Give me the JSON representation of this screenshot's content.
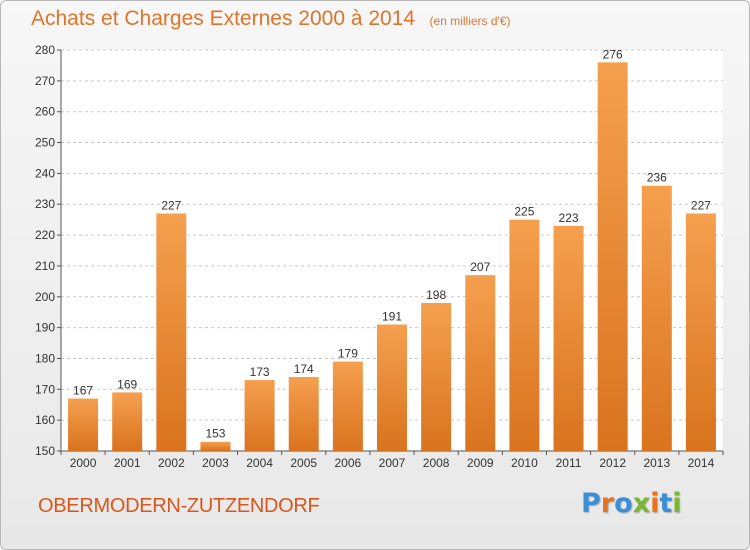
{
  "header": {
    "title": "Achats et Charges Externes 2000 à 2014",
    "unit": "(en milliers d'€)"
  },
  "footer": {
    "commune": "OBERMODERN-ZUTZENDORF",
    "brand": "Proxiti"
  },
  "colors": {
    "title": "#e0742a",
    "commune": "#d9571a",
    "bar_top": "#f5a04f",
    "bar_bottom": "#d9731e",
    "brand_letters": [
      "#3b8fd6",
      "#e8731e",
      "#3b8fd6",
      "#7ab534",
      "#e8731e",
      "#3b8fd6",
      "#7ab534"
    ]
  },
  "chart_data": {
    "type": "bar",
    "title": "Achats et Charges Externes 2000 à 2014",
    "unit": "(en milliers d'€)",
    "categories": [
      "2000",
      "2001",
      "2002",
      "2003",
      "2004",
      "2005",
      "2006",
      "2007",
      "2008",
      "2009",
      "2010",
      "2011",
      "2012",
      "2013",
      "2014"
    ],
    "values": [
      167,
      169,
      227,
      153,
      173,
      174,
      179,
      191,
      198,
      207,
      225,
      223,
      276,
      236,
      227
    ],
    "ylim": [
      150,
      280
    ],
    "yticks": [
      150,
      160,
      170,
      180,
      190,
      200,
      210,
      220,
      230,
      240,
      250,
      260,
      270,
      280
    ],
    "grid": true,
    "data_labels": true
  }
}
